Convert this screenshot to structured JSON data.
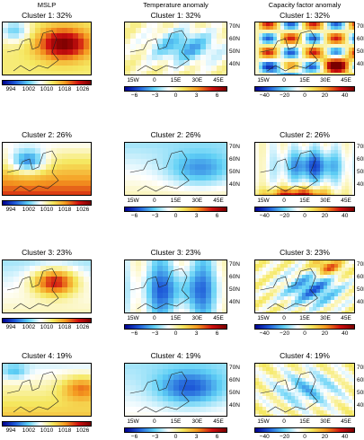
{
  "columns": {
    "mslp": {
      "title": "MSLP"
    },
    "temperature": {
      "title": "Temperature anomaly"
    },
    "capacity": {
      "title": "Capacity factor anomaly"
    }
  },
  "clusters": [
    {
      "label": "Cluster  1: 32%"
    },
    {
      "label": "Cluster  2: 26%"
    },
    {
      "label": "Cluster  3: 23%"
    },
    {
      "label": "Cluster  4: 19%"
    }
  ],
  "axes": {
    "lat_ticks": [
      "70N",
      "60N",
      "50N",
      "40N"
    ],
    "lon_ticks": [
      "15W",
      "0",
      "15E",
      "30E",
      "45E"
    ]
  },
  "colorbars": {
    "mslp": {
      "ticks": [
        "994",
        "1002",
        "1010",
        "1018",
        "1026"
      ]
    },
    "temperature": {
      "ticks": [
        "−6",
        "−3",
        "0",
        "3",
        "6"
      ]
    },
    "capacity": {
      "ticks": [
        "−40",
        "−20",
        "0",
        "20",
        "40"
      ]
    }
  },
  "colors": {
    "blue_dark": "#00008f",
    "blue": "#1e5ad8",
    "cyan": "#5fd0f5",
    "white": "#ffffff",
    "yellow": "#f5e860",
    "orange": "#f59a20",
    "red": "#cf1010",
    "red_dark": "#7a0000"
  }
}
